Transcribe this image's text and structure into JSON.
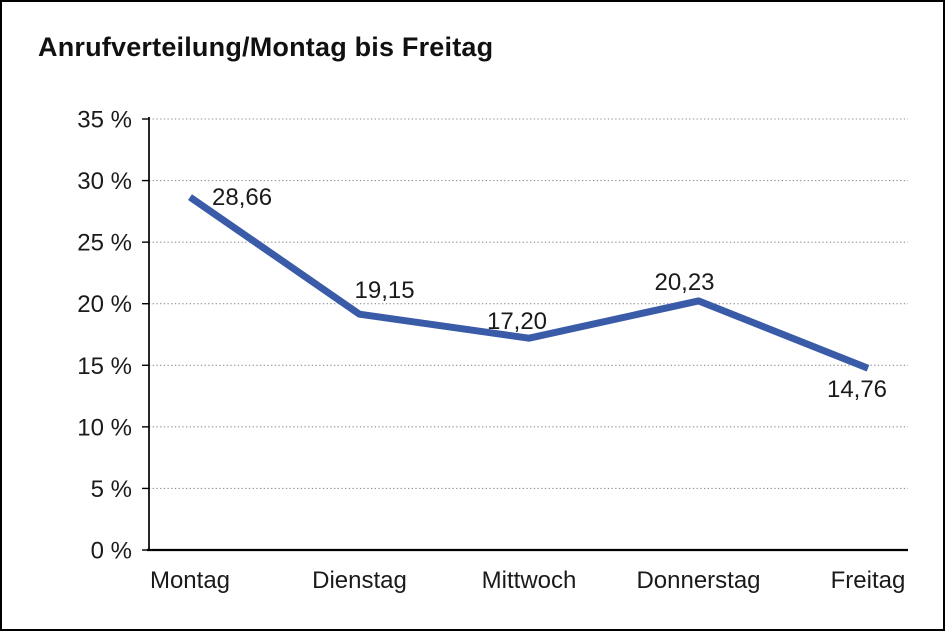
{
  "window": {
    "background": "#ffffff",
    "border_color": "#000000"
  },
  "chart_data": {
    "type": "line",
    "title": "Anrufverteilung/Montag bis Freitag",
    "categories": [
      "Montag",
      "Dienstag",
      "Mittwoch",
      "Donnerstag",
      "Freitag"
    ],
    "values": [
      28.66,
      19.15,
      17.2,
      20.23,
      14.76
    ],
    "point_labels": [
      "28,66",
      "19,15",
      "17,20",
      "20,23",
      "14,76"
    ],
    "xlabel": "",
    "ylabel": "",
    "ylim": [
      0,
      35
    ],
    "ytick_step": 5,
    "ytick_labels": [
      "0 %",
      "5 %",
      "10 %",
      "15 %",
      "20 %",
      "25 %",
      "30 %",
      "35 %"
    ],
    "grid": "horizontal-dotted",
    "legend_position": "none",
    "line_color": "#3A5BA8",
    "axis_color": "#000000",
    "grid_color": "#8f8f8f",
    "label_color": "#1a1a1a",
    "tick_label_color": "#1a1a1a"
  }
}
